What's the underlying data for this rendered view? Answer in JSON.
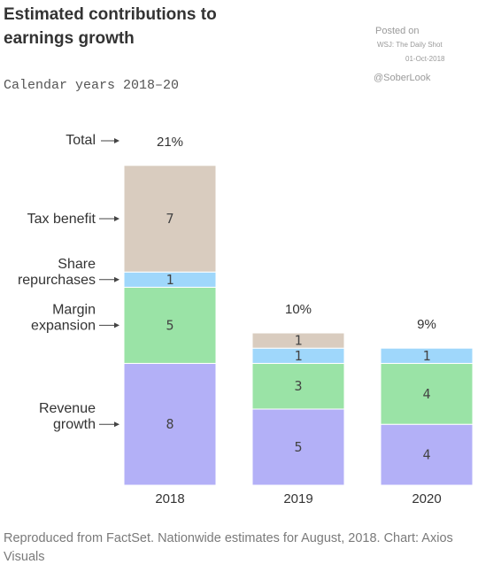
{
  "chart_data": {
    "type": "bar",
    "stacked": true,
    "title": "Estimated contributions to earnings growth",
    "subtitle": "Calendar years 2018–20",
    "categories": [
      "2018",
      "2019",
      "2020"
    ],
    "series": [
      {
        "name": "Revenue growth",
        "label_lines": [
          "Revenue",
          "growth"
        ],
        "color": "#b3b0f7",
        "values": [
          8,
          5,
          4
        ]
      },
      {
        "name": "Margin expansion",
        "label_lines": [
          "Margin",
          "expansion"
        ],
        "color": "#9ae3a6",
        "values": [
          5,
          3,
          4
        ]
      },
      {
        "name": "Share repurchases",
        "label_lines": [
          "Share",
          "repurchases"
        ],
        "color": "#9fd7fb",
        "values": [
          1,
          1,
          1
        ]
      },
      {
        "name": "Tax benefit",
        "label_lines": [
          "Tax benefit"
        ],
        "color": "#d9ccbf",
        "values": [
          7,
          1,
          0
        ]
      }
    ],
    "total_label": "Total",
    "totals": [
      "21%",
      "10%",
      "9%"
    ]
  },
  "watermark": {
    "posted_on": "Posted on",
    "source": "WSJ: The Daily Shot",
    "date": "01-Oct-2018",
    "handle": "@SoberLook"
  },
  "footer": "Reproduced from FactSet. Nationwide estimates for August, 2018. Chart: Axios Visuals"
}
